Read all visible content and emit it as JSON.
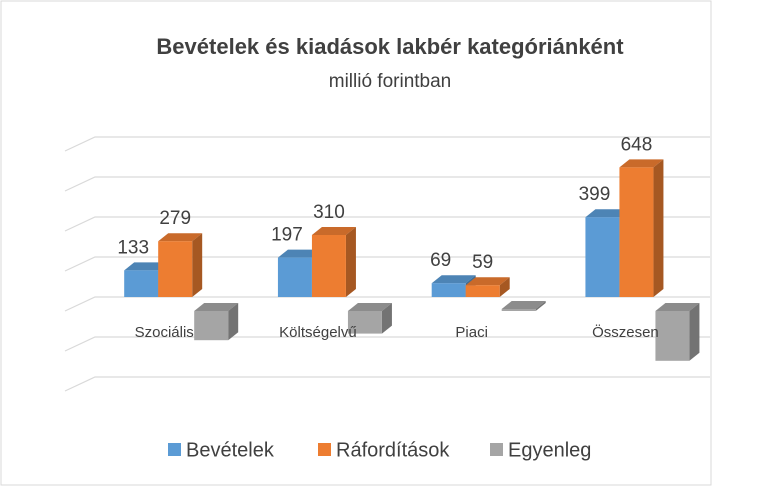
{
  "chart_data": {
    "type": "bar3d",
    "title": "Bevételek és kiadások lakbér kategóriánként",
    "subtitle": "millió forintban",
    "categories": [
      "Szociális",
      "Költségelvű",
      "Piaci",
      "Összesen"
    ],
    "series": [
      {
        "name": "Bevételek",
        "color": "#5b9bd5",
        "values": [
          133,
          197,
          69,
          399
        ],
        "show_labels": true
      },
      {
        "name": "Ráfordítások",
        "color": "#ed7d31",
        "values": [
          279,
          310,
          59,
          648
        ],
        "show_labels": true
      },
      {
        "name": "Egyenleg",
        "color": "#a5a5a5",
        "values": [
          -146,
          -113,
          10,
          -249
        ],
        "show_labels": false
      }
    ],
    "ylim": [
      -400,
      800
    ],
    "yticks": [
      -400,
      -200,
      0,
      200,
      400,
      600,
      800
    ],
    "grid": true,
    "legend": "bottom"
  }
}
